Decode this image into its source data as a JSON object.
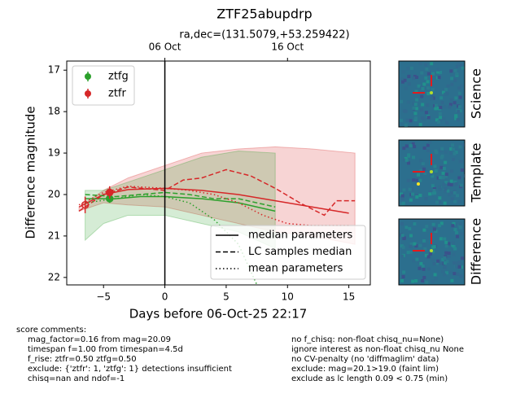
{
  "chart_data": {
    "type": "line",
    "title": "ZTF25abupdrp",
    "subtitle": "ra,dec=(131.5079,+53.259422)",
    "xlabel": "Days before 06-Oct-25 22:17",
    "ylabel": "Difference magnitude",
    "xlim": [
      -8,
      16.75
    ],
    "ylim": [
      22.18,
      16.78
    ],
    "xticks": [
      {
        "value": -5,
        "label": "−5"
      },
      0,
      5,
      10,
      15
    ],
    "yticks": [
      17,
      18,
      19,
      20,
      21,
      22
    ],
    "x2ticks": [
      {
        "value": 0,
        "label": "06 Oct"
      },
      {
        "value": 10,
        "label": "16 Oct"
      }
    ],
    "vline": 0,
    "points": [
      {
        "name": "ztfg",
        "color": "#2ca02c",
        "x": [
          -4.5
        ],
        "values": [
          20.1
        ],
        "errors": [
          0.1
        ],
        "filled": [
          true
        ]
      },
      {
        "name": "ztfr",
        "color": "#d62728",
        "x": [
          -6.5,
          -4.5
        ],
        "values": [
          20.25,
          19.95
        ],
        "errors": [
          0.2,
          0.15
        ],
        "filled": [
          false,
          true
        ]
      }
    ],
    "styles": [
      {
        "name": "median parameters",
        "dash": "solid"
      },
      {
        "name": "LC samples median",
        "dash": "dashed"
      },
      {
        "name": "mean parameters",
        "dash": "dotted"
      }
    ],
    "bands": [
      {
        "color": "#d62728",
        "x": [
          -7,
          -5,
          -3,
          0,
          3,
          6,
          9,
          12,
          15.5
        ],
        "lower": [
          20.3,
          19.9,
          19.6,
          19.3,
          19.0,
          18.9,
          18.85,
          18.9,
          19.0
        ],
        "upper": [
          20.4,
          20.2,
          20.25,
          20.3,
          20.5,
          20.7,
          20.9,
          21.0,
          21.2
        ]
      },
      {
        "color": "#2ca02c",
        "x": [
          -6.5,
          -5,
          -3,
          0,
          3,
          6,
          9
        ],
        "lower": [
          19.9,
          19.9,
          19.7,
          19.4,
          19.1,
          18.95,
          19.0
        ],
        "upper": [
          21.1,
          20.7,
          20.5,
          20.5,
          20.7,
          20.9,
          21.3
        ]
      }
    ],
    "lines": [
      {
        "color": "#d62728",
        "dash": "solid",
        "x": [
          -7,
          -5,
          -3,
          0,
          3,
          6,
          9,
          12,
          15
        ],
        "values": [
          20.3,
          20.0,
          19.88,
          19.85,
          19.9,
          20.0,
          20.15,
          20.3,
          20.45
        ]
      },
      {
        "color": "#2ca02c",
        "dash": "solid",
        "x": [
          -6.5,
          -4,
          -2,
          0,
          3,
          6,
          9
        ],
        "values": [
          20.1,
          20.1,
          20.05,
          20.05,
          20.1,
          20.2,
          20.4
        ]
      },
      {
        "color": "#d62728",
        "dash": "dashed",
        "x": [
          -7,
          -5,
          -3,
          0,
          1.5,
          3,
          5,
          7,
          9,
          11,
          13,
          14,
          15.5
        ],
        "values": [
          20.4,
          20.0,
          19.82,
          19.9,
          19.65,
          19.6,
          19.4,
          19.55,
          19.85,
          20.2,
          20.5,
          20.15,
          20.15
        ]
      },
      {
        "color": "#2ca02c",
        "dash": "dashed",
        "x": [
          -6.5,
          -4,
          -2,
          0,
          2,
          4,
          6,
          9
        ],
        "values": [
          20.0,
          20.05,
          20.0,
          19.95,
          20.0,
          20.1,
          20.1,
          20.3
        ]
      },
      {
        "color": "#d62728",
        "dash": "dotted",
        "x": [
          -7,
          -5,
          -3,
          0,
          2,
          4,
          6,
          8,
          10,
          12,
          15
        ],
        "values": [
          20.25,
          19.95,
          19.8,
          19.85,
          19.9,
          20.0,
          20.2,
          20.5,
          20.7,
          20.75,
          20.75
        ]
      },
      {
        "color": "#2ca02c",
        "dash": "dotted",
        "x": [
          -6.5,
          -4,
          -2,
          0,
          2,
          4,
          6,
          8
        ],
        "values": [
          20.2,
          20.1,
          20.0,
          20.05,
          20.2,
          20.6,
          21.2,
          22.5
        ]
      }
    ]
  },
  "cutouts": [
    "Science",
    "Template",
    "Difference"
  ],
  "comments": {
    "heading": "score comments:",
    "left": [
      "mag_factor=0.16 from mag=20.09",
      "timespan f=1.00 from timespan=4.5d",
      "f_rise: ztfr=0.50 ztfg=0.50",
      "exclude: {'ztfr': 1, 'ztfg': 1} detections insufficient",
      "chisq=nan and ndof=-1"
    ],
    "right": [
      "no f_chisq: non-float chisq_nu=None)",
      "ignore interest as non-float chisq_nu None",
      "no CV-penalty (no 'diffmaglim' data)",
      "exclude: mag=20.1>19.0 (faint lim)",
      "exclude as lc length 0.09 < 0.75 (min)"
    ]
  }
}
